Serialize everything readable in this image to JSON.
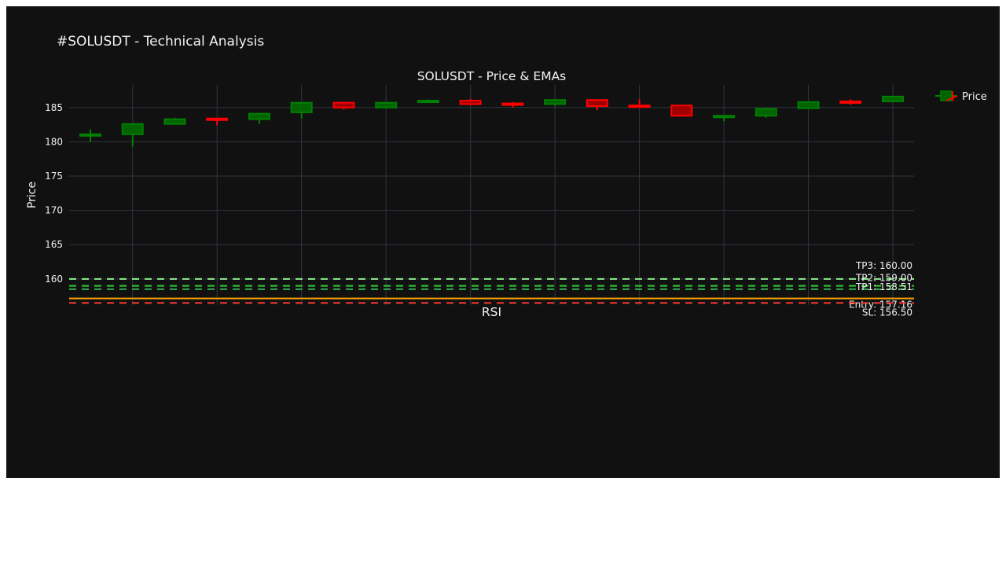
{
  "figure": {
    "title": "#SOLUSDT - Technical Analysis",
    "subplot_titles": [
      "SOLUSDT - Price & EMAs",
      "RSI"
    ]
  },
  "chart_data": {
    "type": "candlestick",
    "title": "SOLUSDT - Price & EMAs",
    "ylabel": "Price",
    "ylim": [
      156.2,
      188.3
    ],
    "yticks": [
      160,
      165,
      170,
      175,
      180,
      185
    ],
    "grid": true,
    "legend": {
      "position": "top-right",
      "entries": [
        "Price"
      ]
    },
    "colors": {
      "increasing": "#008000",
      "decreasing": "#ff0000",
      "background": "#111111",
      "grid": "#2f3540"
    },
    "candles": [
      {
        "o": 181.0,
        "h": 181.8,
        "l": 180.0,
        "c": 181.1
      },
      {
        "o": 181.1,
        "h": 182.6,
        "l": 179.3,
        "c": 182.6
      },
      {
        "o": 182.6,
        "h": 183.5,
        "l": 182.6,
        "c": 183.3
      },
      {
        "o": 183.4,
        "h": 183.5,
        "l": 182.4,
        "c": 183.3
      },
      {
        "o": 183.3,
        "h": 184.2,
        "l": 182.6,
        "c": 184.1
      },
      {
        "o": 184.3,
        "h": 185.8,
        "l": 183.4,
        "c": 185.7
      },
      {
        "o": 185.7,
        "h": 185.8,
        "l": 184.7,
        "c": 185.0
      },
      {
        "o": 185.0,
        "h": 185.8,
        "l": 185.0,
        "c": 185.7
      },
      {
        "o": 185.8,
        "h": 186.2,
        "l": 185.8,
        "c": 186.0
      },
      {
        "o": 186.0,
        "h": 186.3,
        "l": 185.3,
        "c": 185.5
      },
      {
        "o": 185.6,
        "h": 185.8,
        "l": 185.0,
        "c": 185.4
      },
      {
        "o": 185.5,
        "h": 186.2,
        "l": 185.2,
        "c": 186.1
      },
      {
        "o": 186.1,
        "h": 186.2,
        "l": 184.6,
        "c": 185.2
      },
      {
        "o": 185.3,
        "h": 186.2,
        "l": 185.2,
        "c": 185.2
      },
      {
        "o": 185.3,
        "h": 185.3,
        "l": 183.7,
        "c": 183.8
      },
      {
        "o": 183.7,
        "h": 183.9,
        "l": 183.0,
        "c": 183.8
      },
      {
        "o": 183.8,
        "h": 185.0,
        "l": 183.5,
        "c": 184.8
      },
      {
        "o": 184.9,
        "h": 185.9,
        "l": 184.9,
        "c": 185.8
      },
      {
        "o": 185.9,
        "h": 186.2,
        "l": 185.4,
        "c": 185.8
      },
      {
        "o": 185.9,
        "h": 186.7,
        "l": 185.9,
        "c": 186.6
      }
    ],
    "levels": [
      {
        "label": "TP3: 160.00",
        "value": 160.0,
        "color": "#90ee90",
        "dash": "dash"
      },
      {
        "label": "TP2: 159.00",
        "value": 159.0,
        "color": "#32cd32",
        "dash": "dash"
      },
      {
        "label": "TP1: 158.51",
        "value": 158.51,
        "color": "#2fa84f",
        "dash": "dash"
      },
      {
        "label": "Entry: 157.16",
        "value": 157.16,
        "color": "#ffa500",
        "dash": "solid"
      },
      {
        "label": "SL: 156.50",
        "value": 156.5,
        "color": "#ff3b30",
        "dash": "dash"
      }
    ]
  }
}
